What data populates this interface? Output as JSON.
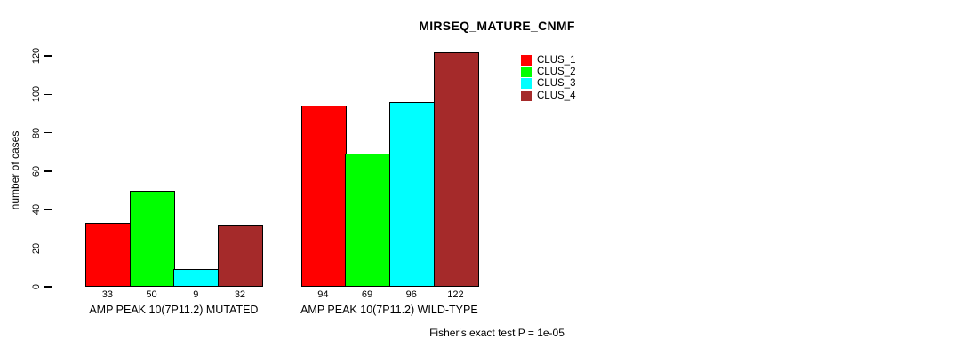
{
  "chart_data": {
    "type": "bar",
    "title": "MIRSEQ_MATURE_CNMF",
    "ylabel": "number of cases",
    "xlabel": "",
    "ylim": [
      0,
      120
    ],
    "yticks": [
      0,
      20,
      40,
      60,
      80,
      100,
      120
    ],
    "grid": false,
    "legend_position": "top-right",
    "categories": [
      "AMP PEAK 10(7P11.2) MUTATED",
      "AMP PEAK 10(7P11.2) WILD-TYPE"
    ],
    "series": [
      {
        "name": "CLUS_1",
        "color": "#ff0000",
        "values": [
          33,
          94
        ]
      },
      {
        "name": "CLUS_2",
        "color": "#00ff00",
        "values": [
          50,
          69
        ]
      },
      {
        "name": "CLUS_3",
        "color": "#00ffff",
        "values": [
          9,
          96
        ]
      },
      {
        "name": "CLUS_4",
        "color": "#a52a2a",
        "values": [
          32,
          122
        ]
      }
    ],
    "bar_value_labels": [
      [
        33,
        50,
        9,
        32
      ],
      [
        94,
        69,
        96,
        122
      ]
    ],
    "annotation": "Fisher's exact test P = 1e-05"
  }
}
